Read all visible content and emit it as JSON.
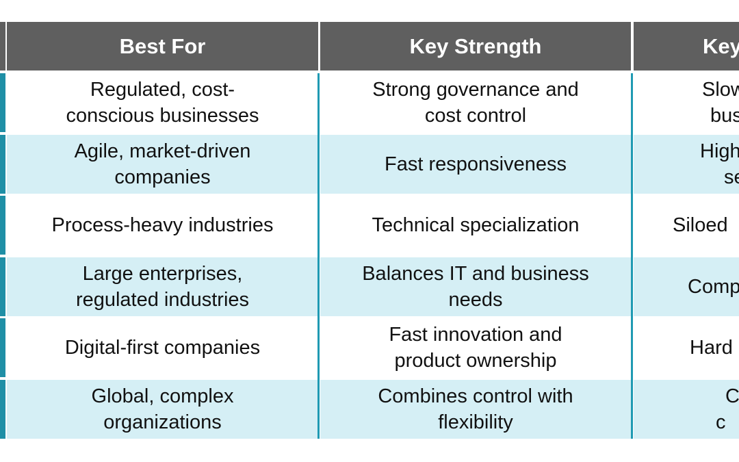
{
  "table": {
    "header": [
      "Best For",
      "Key Strength",
      "Key"
    ],
    "rows": [
      [
        [
          "Regulated, cost-",
          "conscious businesses"
        ],
        [
          "Strong governance and",
          "cost control"
        ],
        [
          "Slow",
          "bus"
        ]
      ],
      [
        [
          "Agile, market-driven",
          "companies"
        ],
        [
          "Fast responsiveness"
        ],
        [
          "High",
          "se"
        ]
      ],
      [
        [
          "Process-heavy industries"
        ],
        [
          "Technical specialization"
        ],
        [
          "Siloed"
        ]
      ],
      [
        [
          "Large enterprises,",
          "regulated industries"
        ],
        [
          "Balances IT and business",
          "needs"
        ],
        [
          "Comp"
        ]
      ],
      [
        [
          "Digital-first companies"
        ],
        [
          "Fast innovation and",
          "product ownership"
        ],
        [
          "Hard"
        ]
      ],
      [
        [
          "Global, complex",
          "organizations"
        ],
        [
          "Combines control with",
          "flexibility"
        ],
        [
          "C",
          "c"
        ]
      ]
    ]
  }
}
